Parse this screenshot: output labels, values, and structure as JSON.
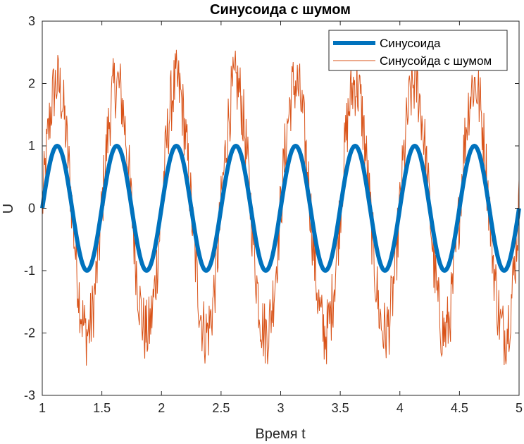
{
  "chart_data": {
    "type": "line",
    "title": "Синусоида с шумом",
    "xlabel": "Время t",
    "ylabel": "U",
    "xlim": [
      1,
      5
    ],
    "ylim": [
      -3,
      3
    ],
    "xticks": [
      "1",
      "1.5",
      "2",
      "2.5",
      "3",
      "3.5",
      "4",
      "4.5",
      "5"
    ],
    "yticks": [
      "3",
      "2",
      "1",
      "0",
      "-1",
      "-2",
      "-3"
    ],
    "grid": false,
    "legend_position": "top-right",
    "series": [
      {
        "name": "Синусоида",
        "color": "#0072BD",
        "amplitude": 1,
        "frequency_hz": 2,
        "phase_origin": 1
      },
      {
        "name": "Синусойда с шумом",
        "color": "#D95319",
        "amplitude": 2,
        "frequency_hz": 2,
        "phase_origin": 1,
        "noise_amplitude": 0.55
      }
    ]
  }
}
